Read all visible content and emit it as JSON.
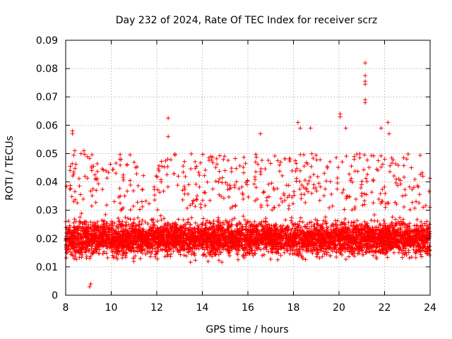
{
  "chart_data": {
    "type": "scatter",
    "title": "Day 232 of 2024, Rate Of TEC Index for receiver scrz",
    "xlabel": "GPS time / hours",
    "ylabel": "ROTI / TECUs",
    "xlim": [
      8,
      24
    ],
    "ylim": [
      0,
      0.09
    ],
    "xticks": [
      8,
      10,
      12,
      14,
      16,
      18,
      20,
      22,
      24
    ],
    "xtick_labels": [
      "8",
      "10",
      "12",
      "14",
      "16",
      "18",
      "20",
      "22",
      "24"
    ],
    "yticks": [
      0,
      0.01,
      0.02,
      0.03,
      0.04,
      0.05,
      0.06,
      0.07,
      0.08,
      0.09
    ],
    "ytick_labels": [
      "0",
      "0.01",
      "0.02",
      "0.03",
      "0.04",
      "0.05",
      "0.06",
      "0.07",
      "0.08",
      "0.09"
    ],
    "grid": true,
    "marker": "+",
    "color": "#ff0000",
    "series": [
      {
        "name": "ROTI",
        "notable_points": [
          {
            "x": 8.3,
            "y": 0.058
          },
          {
            "x": 8.3,
            "y": 0.057
          },
          {
            "x": 8.4,
            "y": 0.051
          },
          {
            "x": 8.8,
            "y": 0.051
          },
          {
            "x": 9.05,
            "y": 0.003
          },
          {
            "x": 9.1,
            "y": 0.004
          },
          {
            "x": 12.5,
            "y": 0.0625
          },
          {
            "x": 12.5,
            "y": 0.056
          },
          {
            "x": 16.55,
            "y": 0.057
          },
          {
            "x": 18.2,
            "y": 0.061
          },
          {
            "x": 18.3,
            "y": 0.059
          },
          {
            "x": 18.75,
            "y": 0.059
          },
          {
            "x": 20.05,
            "y": 0.064
          },
          {
            "x": 20.05,
            "y": 0.063
          },
          {
            "x": 20.3,
            "y": 0.059
          },
          {
            "x": 21.15,
            "y": 0.082
          },
          {
            "x": 21.15,
            "y": 0.0775
          },
          {
            "x": 21.15,
            "y": 0.0755
          },
          {
            "x": 21.15,
            "y": 0.0745
          },
          {
            "x": 21.15,
            "y": 0.069
          },
          {
            "x": 21.15,
            "y": 0.068
          },
          {
            "x": 21.85,
            "y": 0.059
          },
          {
            "x": 22.15,
            "y": 0.061
          },
          {
            "x": 22.2,
            "y": 0.057
          }
        ],
        "bulk": {
          "x_range": [
            8,
            24
          ],
          "typical_y_range": [
            0.01,
            0.035
          ],
          "median_y": 0.02,
          "upper_spikes_to": 0.05,
          "min_y": 0.003
        }
      }
    ]
  }
}
